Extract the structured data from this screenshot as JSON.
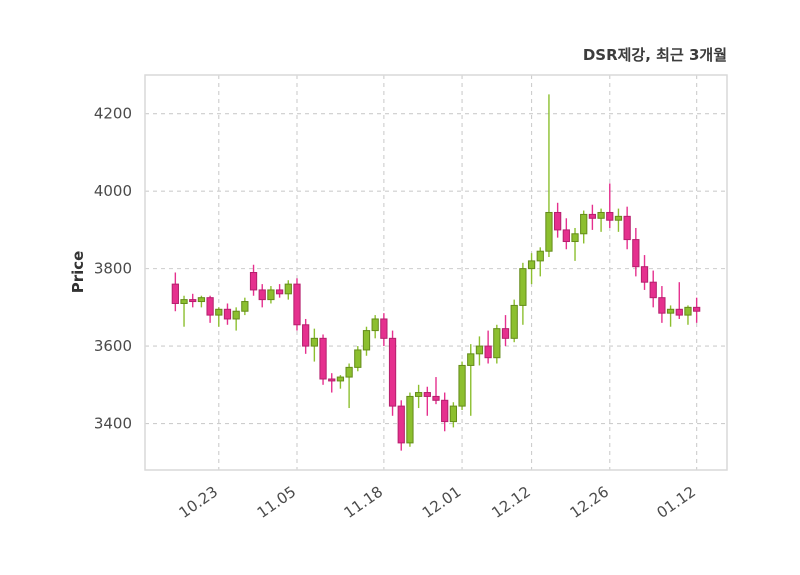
{
  "chart_data": {
    "type": "candlestick",
    "title": "DSR제강, 최근 3개월",
    "ylabel": "Price",
    "ylim": [
      3280,
      4300
    ],
    "y_ticks": [
      3400,
      3600,
      3800,
      4000,
      4200
    ],
    "x_tick_labels": [
      "10.23",
      "11.05",
      "11.18",
      "12.01",
      "12.12",
      "12.26",
      "01.12"
    ],
    "x_tick_indices": [
      5,
      14,
      24,
      33,
      41,
      50,
      60
    ],
    "grid": true,
    "legend": "none",
    "colors": {
      "up": "#8cbf2f",
      "up_edge": "#648c1a",
      "down": "#e5308e",
      "down_edge": "#b51f6d",
      "grid": "#cdcdcd",
      "axis_border": "#d9d9d9",
      "plot_bg": "#ffffff",
      "title_text": "#3c3c3c",
      "tick_text": "#4b4b4b"
    },
    "ohlc": [
      [
        3760,
        3790,
        3690,
        3710
      ],
      [
        3710,
        3730,
        3650,
        3720
      ],
      [
        3720,
        3735,
        3700,
        3715
      ],
      [
        3715,
        3730,
        3700,
        3725
      ],
      [
        3725,
        3730,
        3660,
        3680
      ],
      [
        3680,
        3700,
        3650,
        3695
      ],
      [
        3695,
        3710,
        3655,
        3670
      ],
      [
        3670,
        3700,
        3640,
        3690
      ],
      [
        3690,
        3725,
        3680,
        3715
      ],
      [
        3790,
        3810,
        3730,
        3745
      ],
      [
        3745,
        3760,
        3700,
        3720
      ],
      [
        3720,
        3755,
        3710,
        3745
      ],
      [
        3745,
        3760,
        3725,
        3735
      ],
      [
        3735,
        3770,
        3720,
        3760
      ],
      [
        3760,
        3775,
        3640,
        3655
      ],
      [
        3655,
        3670,
        3580,
        3600
      ],
      [
        3600,
        3645,
        3560,
        3620
      ],
      [
        3620,
        3630,
        3500,
        3515
      ],
      [
        3515,
        3530,
        3480,
        3510
      ],
      [
        3510,
        3525,
        3490,
        3520
      ],
      [
        3520,
        3555,
        3440,
        3545
      ],
      [
        3545,
        3600,
        3535,
        3590
      ],
      [
        3590,
        3650,
        3575,
        3640
      ],
      [
        3640,
        3680,
        3620,
        3670
      ],
      [
        3670,
        3685,
        3600,
        3620
      ],
      [
        3620,
        3640,
        3420,
        3445
      ],
      [
        3445,
        3460,
        3330,
        3350
      ],
      [
        3350,
        3480,
        3340,
        3470
      ],
      [
        3470,
        3500,
        3440,
        3480
      ],
      [
        3480,
        3495,
        3420,
        3470
      ],
      [
        3470,
        3520,
        3450,
        3460
      ],
      [
        3460,
        3480,
        3380,
        3405
      ],
      [
        3405,
        3455,
        3390,
        3445
      ],
      [
        3445,
        3560,
        3435,
        3550
      ],
      [
        3550,
        3605,
        3420,
        3580
      ],
      [
        3580,
        3625,
        3550,
        3600
      ],
      [
        3600,
        3640,
        3555,
        3570
      ],
      [
        3570,
        3655,
        3555,
        3645
      ],
      [
        3645,
        3680,
        3600,
        3620
      ],
      [
        3620,
        3720,
        3610,
        3705
      ],
      [
        3705,
        3815,
        3655,
        3800
      ],
      [
        3800,
        3840,
        3760,
        3820
      ],
      [
        3820,
        3855,
        3780,
        3845
      ],
      [
        3845,
        4250,
        3830,
        3945
      ],
      [
        3945,
        3970,
        3880,
        3900
      ],
      [
        3900,
        3930,
        3850,
        3870
      ],
      [
        3870,
        3905,
        3820,
        3890
      ],
      [
        3890,
        3950,
        3865,
        3940
      ],
      [
        3940,
        3965,
        3900,
        3930
      ],
      [
        3930,
        3955,
        3895,
        3945
      ],
      [
        3945,
        4020,
        3905,
        3925
      ],
      [
        3925,
        3955,
        3895,
        3935
      ],
      [
        3935,
        3960,
        3850,
        3875
      ],
      [
        3875,
        3905,
        3780,
        3805
      ],
      [
        3805,
        3835,
        3745,
        3765
      ],
      [
        3765,
        3795,
        3700,
        3725
      ],
      [
        3725,
        3755,
        3660,
        3685
      ],
      [
        3685,
        3705,
        3650,
        3695
      ],
      [
        3695,
        3765,
        3670,
        3680
      ],
      [
        3680,
        3705,
        3655,
        3700
      ],
      [
        3700,
        3725,
        3660,
        3690
      ]
    ]
  }
}
